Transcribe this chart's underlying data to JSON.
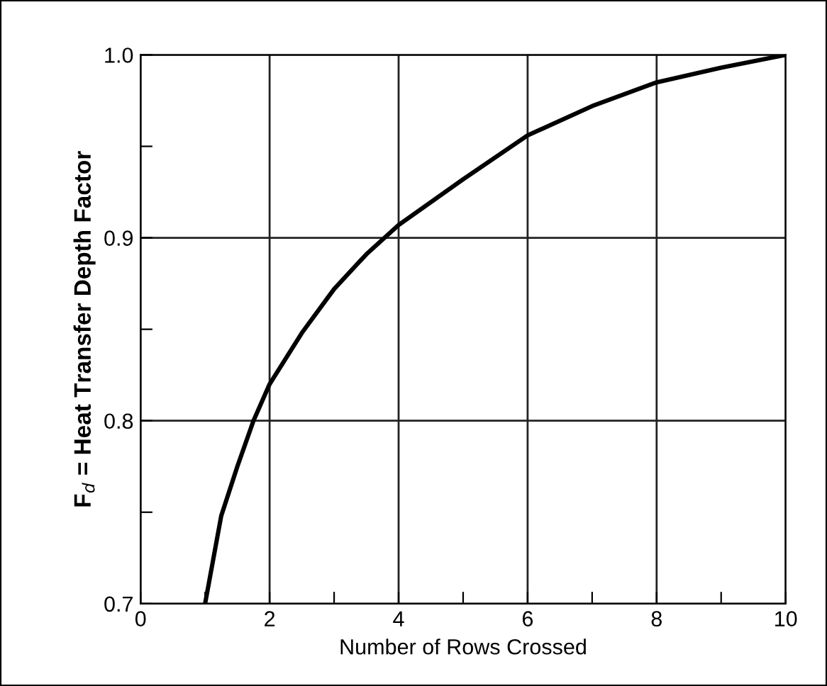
{
  "chart_data": {
    "type": "line",
    "xlabel": "Number of Rows Crossed",
    "ylabel": "F$_{d}$ = Heat Transfer Depth Factor",
    "x": [
      1,
      1.25,
      1.5,
      1.75,
      2,
      2.5,
      3,
      3.5,
      4,
      5,
      6,
      7,
      8,
      9,
      10
    ],
    "series": [
      {
        "color": "#000000",
        "values": [
          0.7,
          0.748,
          0.775,
          0.8,
          0.82,
          0.848,
          0.872,
          0.891,
          0.907,
          0.932,
          0.956,
          0.972,
          0.985,
          0.993,
          1.0
        ]
      }
    ],
    "xlim": [
      0,
      10
    ],
    "ylim": [
      0.7,
      1.0
    ],
    "xticks": [
      0,
      {
        "value": 1,
        "label": null
      },
      2,
      {
        "value": 3,
        "label": null
      },
      4,
      {
        "value": 5,
        "label": null
      },
      6,
      {
        "value": 7,
        "label": null
      },
      8,
      {
        "value": 9,
        "label": null
      },
      10
    ],
    "yticks": [
      {
        "value": 0.7,
        "label": "0.7"
      },
      {
        "value": 0.75,
        "label": null
      },
      {
        "value": 0.8,
        "label": "0.8"
      },
      {
        "value": 0.85,
        "label": null
      },
      {
        "value": 0.9,
        "label": "0.9"
      },
      {
        "value": 0.95,
        "label": null
      },
      {
        "value": 1.0,
        "label": "1.0"
      }
    ],
    "grid": true,
    "marker": "none",
    "line_style": "solid"
  }
}
